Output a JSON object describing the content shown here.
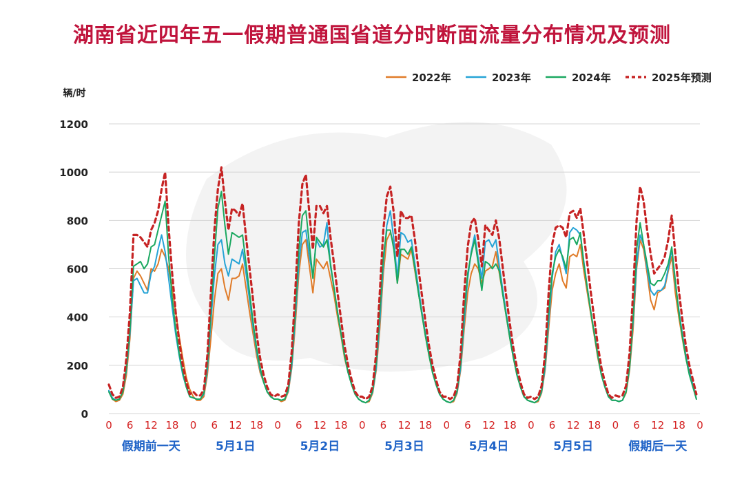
{
  "chart_data": {
    "type": "line",
    "title": "湖南省近四年五一假期普通国省道分时断面流量分布情况及预测",
    "ylabel": "辆/时",
    "ylim": [
      0,
      1200
    ],
    "yticks": [
      0,
      200,
      400,
      600,
      800,
      1000,
      1200
    ],
    "xticks_hours": [
      "0",
      "6",
      "12",
      "18"
    ],
    "days": [
      "假期前一天",
      "5月1日",
      "5月2日",
      "5月3日",
      "5月4日",
      "5月5日",
      "假期后一天"
    ],
    "final_tick": "0",
    "grid": true,
    "legend_position": "top-right",
    "series": [
      {
        "name": "2022年",
        "color": "#e07b28",
        "dashed": false,
        "values": [
          [
            95,
            60,
            50,
            55,
            80,
            160,
            310,
            560,
            590,
            570,
            540,
            510,
            600,
            590,
            620,
            680,
            650,
            600,
            520,
            420,
            320,
            230,
            150,
            100
          ],
          [
            70,
            55,
            55,
            70,
            160,
            310,
            470,
            580,
            600,
            520,
            470,
            560,
            560,
            570,
            620,
            520,
            420,
            330,
            240,
            170,
            130,
            90,
            70,
            60
          ],
          [
            60,
            50,
            55,
            90,
            190,
            370,
            580,
            700,
            720,
            610,
            500,
            640,
            620,
            600,
            630,
            560,
            490,
            400,
            320,
            230,
            170,
            120,
            80,
            60
          ],
          [
            50,
            45,
            50,
            85,
            180,
            350,
            580,
            720,
            750,
            700,
            540,
            660,
            650,
            640,
            680,
            590,
            500,
            410,
            320,
            240,
            170,
            120,
            80,
            60
          ],
          [
            50,
            45,
            50,
            85,
            180,
            350,
            500,
            580,
            620,
            600,
            540,
            590,
            600,
            610,
            670,
            580,
            490,
            400,
            310,
            230,
            160,
            110,
            70,
            55
          ],
          [
            50,
            45,
            50,
            85,
            180,
            350,
            510,
            580,
            620,
            550,
            520,
            650,
            660,
            650,
            700,
            590,
            500,
            410,
            320,
            230,
            160,
            110,
            70,
            55
          ],
          [
            55,
            50,
            55,
            85,
            180,
            350,
            600,
            720,
            680,
            580,
            470,
            430,
            500,
            510,
            520,
            590,
            650,
            500,
            400,
            310,
            230,
            170,
            120,
            60
          ]
        ]
      },
      {
        "name": "2023年",
        "color": "#25a3d6",
        "dashed": false,
        "values": [
          [
            95,
            65,
            55,
            60,
            90,
            180,
            330,
            550,
            560,
            530,
            500,
            500,
            580,
            610,
            680,
            740,
            670,
            560,
            440,
            330,
            240,
            160,
            110,
            70
          ],
          [
            65,
            60,
            60,
            80,
            180,
            380,
            570,
            700,
            720,
            620,
            570,
            640,
            630,
            620,
            680,
            580,
            470,
            360,
            260,
            180,
            130,
            90,
            70,
            60
          ],
          [
            60,
            55,
            60,
            95,
            200,
            400,
            620,
            750,
            760,
            650,
            570,
            720,
            690,
            700,
            790,
            610,
            520,
            420,
            330,
            240,
            170,
            120,
            80,
            60
          ],
          [
            50,
            45,
            55,
            90,
            190,
            380,
            620,
            780,
            840,
            720,
            560,
            750,
            740,
            710,
            720,
            620,
            520,
            420,
            330,
            250,
            170,
            120,
            80,
            60
          ],
          [
            50,
            45,
            55,
            90,
            190,
            380,
            560,
            670,
            740,
            640,
            560,
            710,
            720,
            690,
            720,
            610,
            510,
            410,
            320,
            240,
            160,
            110,
            70,
            55
          ],
          [
            50,
            45,
            55,
            90,
            190,
            380,
            560,
            670,
            700,
            640,
            580,
            750,
            770,
            760,
            740,
            630,
            520,
            420,
            330,
            240,
            160,
            110,
            70,
            55
          ],
          [
            55,
            50,
            55,
            90,
            190,
            380,
            620,
            740,
            700,
            600,
            510,
            490,
            510,
            510,
            530,
            600,
            680,
            540,
            430,
            330,
            240,
            170,
            120,
            60
          ]
        ]
      },
      {
        "name": "2024年",
        "color": "#1aa860",
        "dashed": false,
        "values": [
          [
            90,
            60,
            55,
            60,
            90,
            190,
            350,
            610,
            620,
            630,
            600,
            620,
            690,
            700,
            760,
            820,
            880,
            650,
            480,
            350,
            250,
            170,
            110,
            70
          ],
          [
            65,
            60,
            60,
            85,
            200,
            420,
            650,
            850,
            920,
            780,
            660,
            750,
            740,
            730,
            740,
            620,
            500,
            380,
            270,
            190,
            130,
            90,
            70,
            60
          ],
          [
            60,
            55,
            60,
            100,
            220,
            430,
            680,
            820,
            840,
            700,
            560,
            730,
            710,
            690,
            720,
            620,
            520,
            420,
            330,
            240,
            170,
            120,
            80,
            60
          ],
          [
            50,
            45,
            55,
            95,
            210,
            420,
            650,
            760,
            760,
            680,
            540,
            680,
            680,
            660,
            690,
            600,
            500,
            410,
            320,
            240,
            170,
            120,
            80,
            60
          ],
          [
            50,
            45,
            55,
            95,
            210,
            420,
            580,
            660,
            720,
            620,
            510,
            630,
            620,
            600,
            620,
            590,
            490,
            400,
            310,
            230,
            160,
            110,
            70,
            55
          ],
          [
            50,
            45,
            55,
            95,
            210,
            420,
            580,
            650,
            680,
            650,
            600,
            720,
            730,
            700,
            750,
            620,
            520,
            420,
            330,
            240,
            160,
            110,
            70,
            55
          ],
          [
            55,
            50,
            55,
            90,
            190,
            400,
            680,
            790,
            700,
            620,
            540,
            530,
            550,
            550,
            580,
            620,
            690,
            550,
            420,
            320,
            230,
            160,
            110,
            60
          ]
        ]
      },
      {
        "name": "2025年预测",
        "color": "#c62323",
        "dashed": true,
        "values": [
          [
            120,
            80,
            65,
            70,
            110,
            230,
            420,
            740,
            740,
            730,
            710,
            690,
            760,
            790,
            840,
            930,
            1000,
            770,
            580,
            420,
            300,
            200,
            130,
            80
          ],
          [
            90,
            75,
            75,
            100,
            240,
            500,
            760,
            930,
            1020,
            880,
            760,
            850,
            840,
            820,
            870,
            730,
            600,
            470,
            330,
            230,
            160,
            110,
            80,
            70
          ],
          [
            80,
            70,
            75,
            120,
            260,
            510,
            790,
            950,
            990,
            830,
            680,
            860,
            860,
            830,
            860,
            730,
            620,
            500,
            390,
            280,
            200,
            140,
            90,
            70
          ],
          [
            70,
            60,
            70,
            115,
            250,
            500,
            760,
            900,
            940,
            830,
            650,
            840,
            810,
            810,
            820,
            720,
            600,
            490,
            380,
            280,
            200,
            140,
            90,
            70
          ],
          [
            70,
            60,
            70,
            115,
            250,
            500,
            690,
            790,
            810,
            720,
            610,
            780,
            760,
            740,
            800,
            720,
            600,
            480,
            370,
            270,
            190,
            130,
            80,
            65
          ],
          [
            70,
            60,
            70,
            115,
            250,
            500,
            700,
            770,
            780,
            770,
            730,
            830,
            840,
            810,
            850,
            740,
            620,
            500,
            390,
            280,
            190,
            130,
            80,
            65
          ],
          [
            75,
            70,
            75,
            115,
            250,
            500,
            800,
            940,
            880,
            760,
            660,
            580,
            600,
            620,
            650,
            720,
            820,
            660,
            510,
            390,
            280,
            200,
            140,
            80
          ]
        ]
      }
    ]
  }
}
